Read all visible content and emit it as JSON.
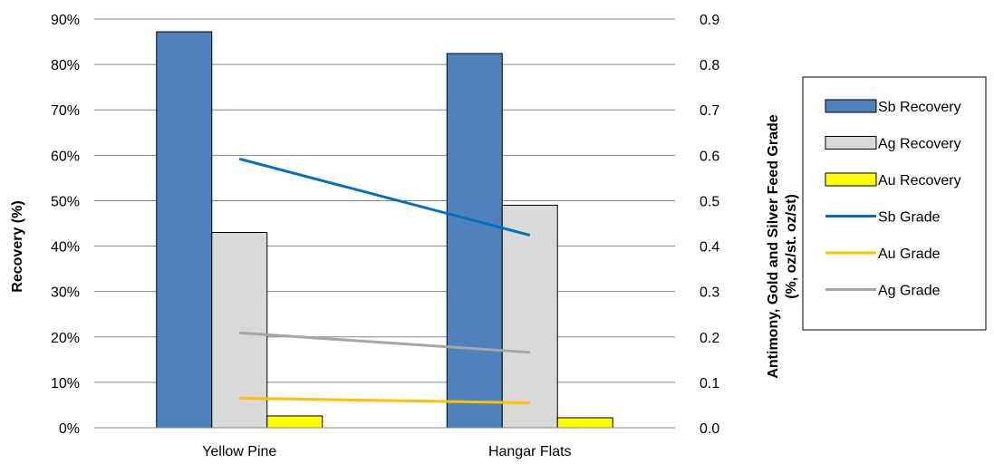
{
  "chart_data": {
    "type": "bar",
    "categories": [
      "Yellow Pine",
      "Hangar Flats"
    ],
    "title": "",
    "xlabel": "",
    "ylabel": "Recovery (%)",
    "y2label_line1": "Antimony, Gold and Silver Feed Grade",
    "y2label_line2": "(%, oz/st. oz/st)",
    "ylim": [
      0,
      90
    ],
    "y2lim": [
      0,
      0.9
    ],
    "y_ticks": [
      "0%",
      "10%",
      "20%",
      "30%",
      "40%",
      "50%",
      "60%",
      "70%",
      "80%",
      "90%"
    ],
    "y2_ticks": [
      "0.0",
      "0.1",
      "0.2",
      "0.3",
      "0.4",
      "0.5",
      "0.6",
      "0.7",
      "0.8",
      "0.9"
    ],
    "grid": true,
    "legend_position": "right",
    "bar_series": [
      {
        "name": "Sb Recovery",
        "values": [
          87.2,
          82.4
        ],
        "color": "#4f81bd",
        "stroke": "#000000"
      },
      {
        "name": "Ag Recovery",
        "values": [
          43.0,
          49.0
        ],
        "color": "#d9d9d9",
        "stroke": "#000000"
      },
      {
        "name": "Au Recovery",
        "values": [
          2.6,
          2.2
        ],
        "color": "#ffff00",
        "stroke": "#000000"
      }
    ],
    "line_series": [
      {
        "name": "Sb Grade",
        "values": [
          0.592,
          0.424
        ],
        "color": "#0070c0",
        "axis": "secondary"
      },
      {
        "name": "Au Grade",
        "values": [
          0.065,
          0.055
        ],
        "color": "#ffc000",
        "axis": "secondary"
      },
      {
        "name": "Ag Grade",
        "values": [
          0.209,
          0.166
        ],
        "color": "#a6a6a6",
        "axis": "secondary"
      }
    ]
  }
}
